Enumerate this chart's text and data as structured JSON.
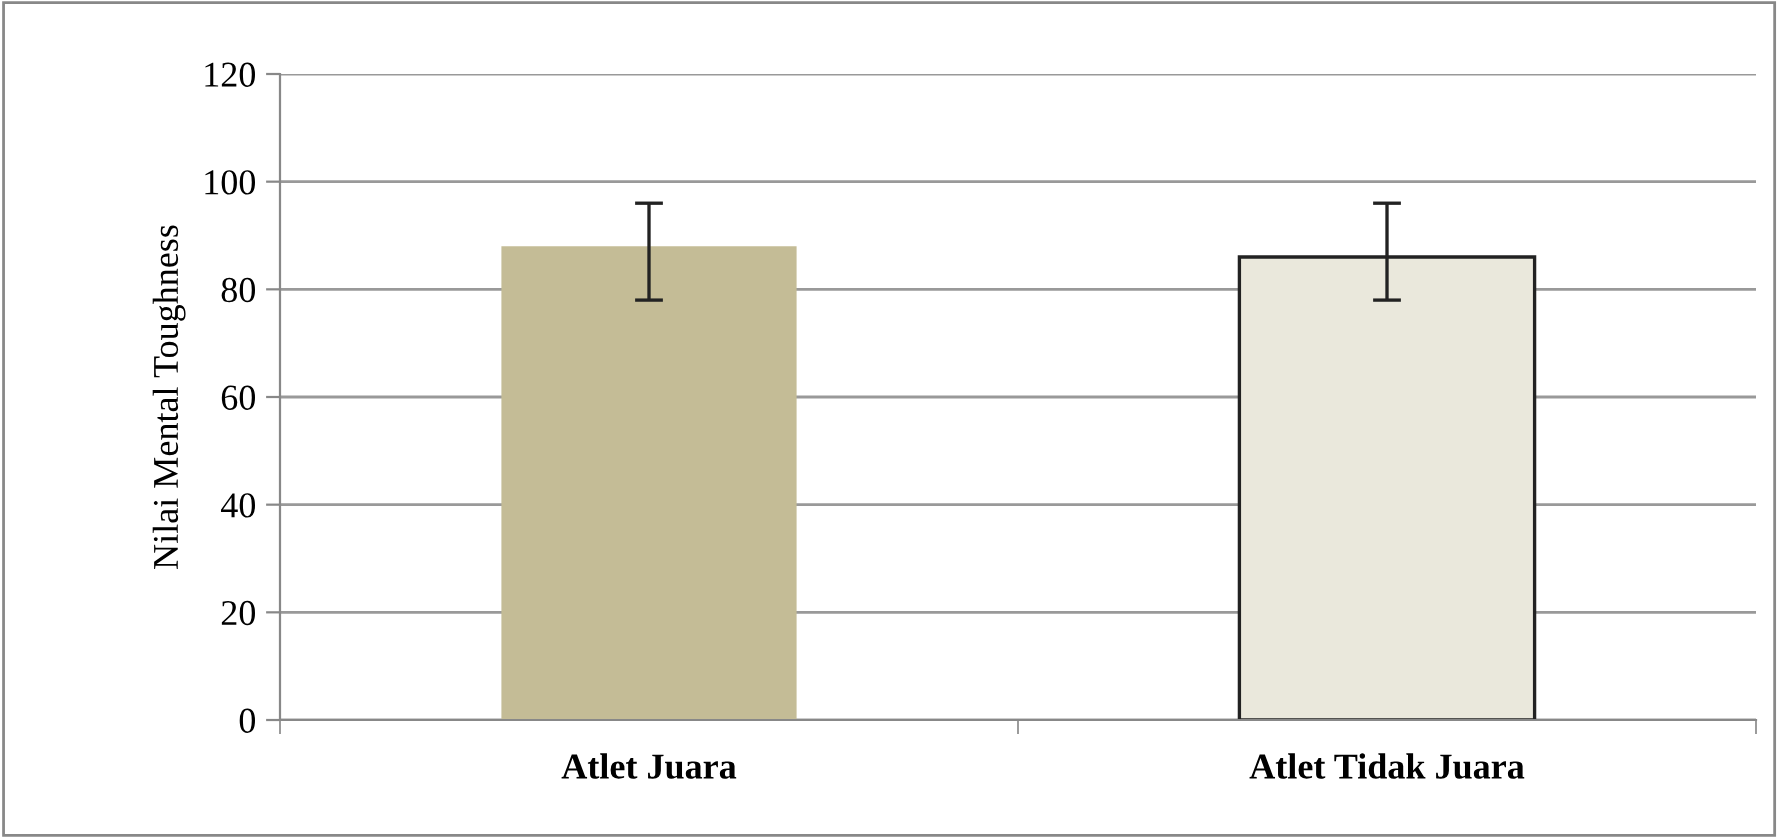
{
  "chart_data": {
    "type": "bar",
    "ylabel": "Nilai Mental Toughness",
    "categories": [
      "Atlet Juara",
      "Atlet Tidak Juara"
    ],
    "values": [
      88,
      86
    ],
    "colors": [
      "#c4bc96",
      "#eae8dc"
    ],
    "errors": [
      [
        78,
        96
      ],
      [
        78,
        96
      ]
    ],
    "ylim": [
      0,
      120
    ],
    "yticks": [
      0,
      20,
      40,
      60,
      80,
      100,
      120
    ],
    "grid": "y"
  }
}
